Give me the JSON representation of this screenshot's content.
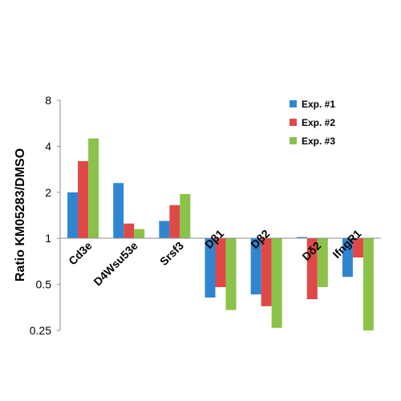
{
  "chart_data": {
    "type": "bar",
    "title": "",
    "xlabel": "",
    "ylabel": "Ratio KM05283/DMSO",
    "y_scale": "log2",
    "ylim": [
      0.25,
      8
    ],
    "y_ticks": [
      8,
      4,
      2,
      1,
      0.5,
      0.25
    ],
    "y_tick_labels": [
      "8",
      "4",
      "2",
      "1",
      "0.5",
      "0.25"
    ],
    "categories": [
      "Cd3e",
      "D4Wsu53e",
      "Srsf3",
      "Dβ1",
      "Dβ2",
      "Dδ2",
      "IfngR1"
    ],
    "series": [
      {
        "name": "Exp. #1",
        "color": "#2e86d1",
        "values": [
          2.0,
          2.3,
          1.3,
          0.41,
          0.43,
          1.02,
          0.56
        ]
      },
      {
        "name": "Exp. #2",
        "color": "#e04848",
        "values": [
          3.2,
          1.25,
          1.65,
          0.48,
          0.36,
          0.4,
          0.75
        ]
      },
      {
        "name": "Exp. #3",
        "color": "#8bc34a",
        "values": [
          4.5,
          1.15,
          1.95,
          0.34,
          0.26,
          0.48,
          0.25
        ]
      }
    ],
    "legend_position": "top-right",
    "grid": false
  }
}
